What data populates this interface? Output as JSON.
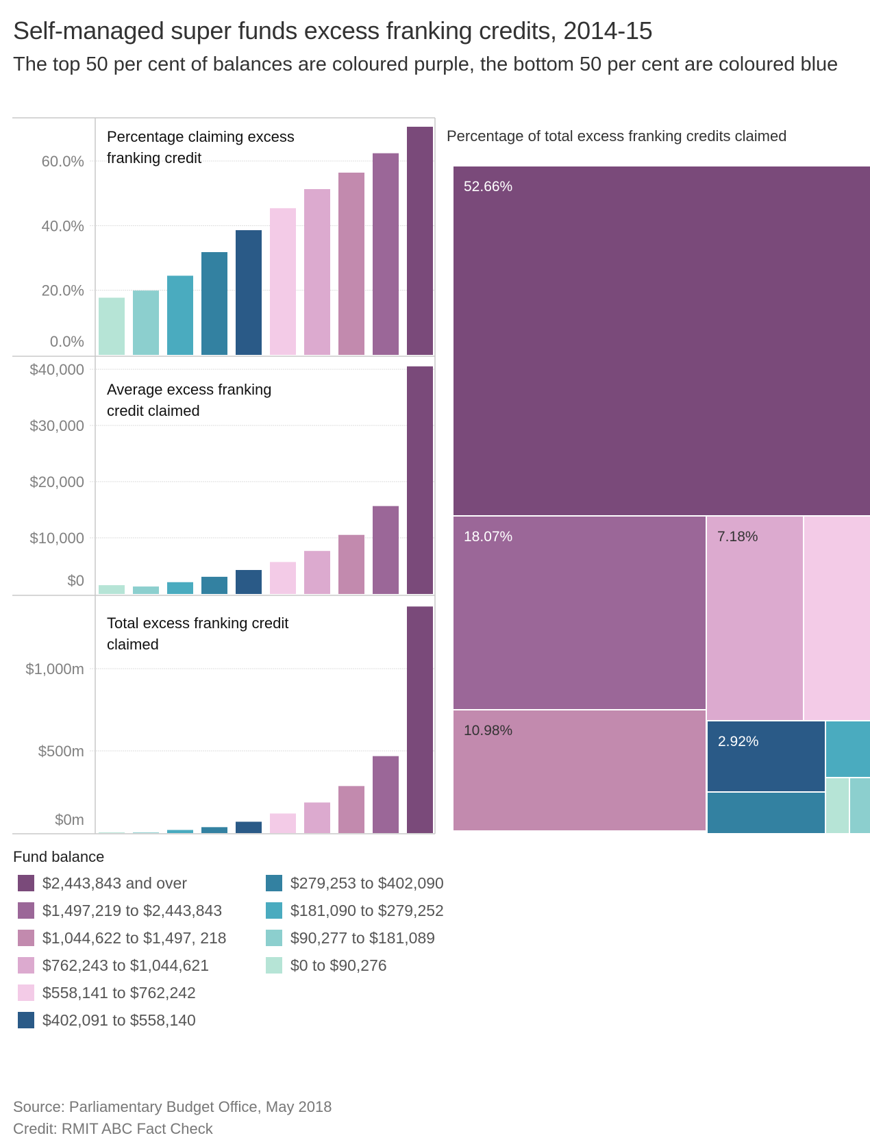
{
  "title": "Self-managed super funds excess franking credits, 2014-15",
  "subtitle": "The top 50 per cent of balances are coloured purple, the bottom 50 per cent are coloured blue",
  "legend": {
    "title": "Fund balance",
    "items": [
      {
        "label": "$2,443,843 and over",
        "color": "#7a4a7a"
      },
      {
        "label": "$1,497,219 to $2,443,843",
        "color": "#9b6798"
      },
      {
        "label": "$1,044,622 to $1,497, 218",
        "color": "#c28aae"
      },
      {
        "label": "$762,243 to $1,044,621",
        "color": "#dcaacf"
      },
      {
        "label": "$558,141 to $762,242",
        "color": "#f3cbe7"
      },
      {
        "label": "$402,091 to $558,140",
        "color": "#2a5a87"
      },
      {
        "label": "$279,253 to $402,090",
        "color": "#3381a1"
      },
      {
        "label": "$181,090 to $279,252",
        "color": "#4aabbf"
      },
      {
        "label": "$90,277 to $181,089",
        "color": "#8ccfce"
      },
      {
        "label": "$0 to $90,276",
        "color": "#b6e4d6"
      }
    ]
  },
  "source": {
    "line1": "Source: Parliamentary Budget Office, May 2018",
    "line2": "Credit: RMIT ABC Fact Check"
  },
  "chart_data": [
    {
      "type": "bar",
      "title": "Percentage claiming excess franking credit",
      "categories": [
        "$0 to $90,276",
        "$90,277 to $181,089",
        "$181,090 to $279,252",
        "$279,253 to $402,090",
        "$402,091 to $558,140",
        "$558,141 to $762,242",
        "$762,243 to $1,044,621",
        "$1,044,622 to $1,497, 218",
        "$1,497,219 to $2,443,843",
        "$2,443,843 and over"
      ],
      "values": [
        17.7,
        19.9,
        24.5,
        31.8,
        38.6,
        45.4,
        51.3,
        56.4,
        62.4,
        70.6
      ],
      "ylabel": "",
      "yticks": [
        0,
        20,
        40,
        60
      ],
      "ytick_labels": [
        "0.0%",
        "20.0%",
        "40.0%",
        "60.0%"
      ],
      "ylim": [
        0,
        74
      ],
      "grid": true
    },
    {
      "type": "bar",
      "title": "Average excess franking credit claimed",
      "categories": [
        "$0 to $90,276",
        "$90,277 to $181,089",
        "$181,090 to $279,252",
        "$279,253 to $402,090",
        "$402,091 to $558,140",
        "$558,141 to $762,242",
        "$762,243 to $1,044,621",
        "$1,044,622 to $1,497, 218",
        "$1,497,219 to $2,443,843",
        "$2,443,843 and over"
      ],
      "values": [
        1570,
        1330,
        2100,
        3060,
        4270,
        5690,
        7660,
        10520,
        15650,
        40520
      ],
      "yticks": [
        0,
        10000,
        20000,
        30000,
        40000
      ],
      "ytick_labels": [
        "$0",
        "$10,000",
        "$20,000",
        "$30,000",
        "$40,000"
      ],
      "ylim": [
        0,
        40950
      ],
      "grid": true
    },
    {
      "type": "bar",
      "title": "Total excess franking credit claimed",
      "categories": [
        "$0 to $90,276",
        "$90,277 to $181,089",
        "$181,090 to $279,252",
        "$279,253 to $402,090",
        "$402,091 to $558,140",
        "$558,141 to $762,242",
        "$762,243 to $1,044,621",
        "$1,044,622 to $1,497, 218",
        "$1,497,219 to $2,443,843",
        "$2,443,843 and over"
      ],
      "values": [
        4,
        4,
        19,
        36,
        69,
        119,
        186,
        286,
        468,
        1378
      ],
      "unit": "$m",
      "yticks": [
        0,
        500,
        1000
      ],
      "ytick_labels": [
        "$0m",
        "$500m",
        "$1,000m"
      ],
      "ylim": [
        0,
        1441
      ],
      "grid": true
    },
    {
      "type": "treemap",
      "title": "Percentage of total excess franking credits claimed",
      "cells": [
        {
          "category": "$2,443,843 and over",
          "value": 52.66,
          "label": "52.66%",
          "label_color": "#ffffff"
        },
        {
          "category": "$1,497,219 to $2,443,843",
          "value": 18.07,
          "label": "18.07%",
          "label_color": "#ffffff"
        },
        {
          "category": "$1,044,622 to $1,497, 218",
          "value": 10.98,
          "label": "10.98%",
          "label_color": "#333333"
        },
        {
          "category": "$762,243 to $1,044,621",
          "value": 7.18,
          "label": "7.18%",
          "label_color": "#333333"
        },
        {
          "category": "$558,141 to $762,242",
          "value": null,
          "label": ""
        },
        {
          "category": "$402,091 to $558,140",
          "value": 2.92,
          "label": "2.92%",
          "label_color": "#ffffff"
        },
        {
          "category": "$279,253 to $402,090",
          "value": null,
          "label": ""
        },
        {
          "category": "$181,090 to $279,252",
          "value": null,
          "label": ""
        },
        {
          "category": "$0 to $90,276",
          "value": null,
          "label": ""
        },
        {
          "category": "$90,277 to $181,089",
          "value": null,
          "label": ""
        }
      ]
    }
  ]
}
